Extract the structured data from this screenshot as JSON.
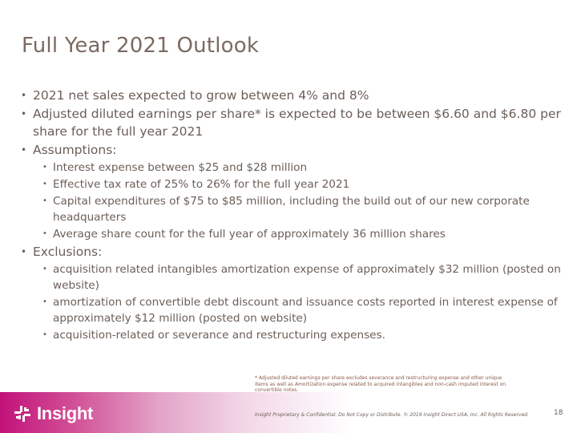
{
  "title": "Full Year 2021 Outlook",
  "bullets": [
    "2021 net sales expected to grow between 4% and 8%",
    "Adjusted diluted earnings per share* is expected to be between $6.60 and $6.80 per share for the full year 2021",
    "Assumptions:",
    "Exclusions:"
  ],
  "assumptions": [
    "Interest expense between $25 and $28 million",
    "Effective tax rate of 25% to 26% for the full year 2021",
    "Capital expenditures of $75 to $85 million, including the build out of our new corporate headquarters",
    "Average share count for the full year of approximately 36 million shares"
  ],
  "exclusions": [
    "acquisition related intangibles amortization expense of approximately $32 million (posted on website)",
    "amortization of convertible debt discount and issuance costs reported in interest expense of approximately $12 million (posted on website)",
    "acquisition-related or severance and restructuring expenses."
  ],
  "footnote": "* Adjusted diluted earnings per share excludes severance and restructuring expense and other unique items as well as Amortization expense related to acquired intangibles and non-cash imputed interest on convertible notes.",
  "footer": {
    "logo_text": "Insight",
    "confidential": "Insight Proprietary & Confidential. Do Not Copy or Distribute. © 2019 Insight Direct USA, Inc. All Rights Reserved.",
    "page_number": "18"
  },
  "colors": {
    "text": "#6b5e57",
    "brand_magenta": "#c2127a"
  },
  "icons": [
    "insight-logo-icon"
  ]
}
